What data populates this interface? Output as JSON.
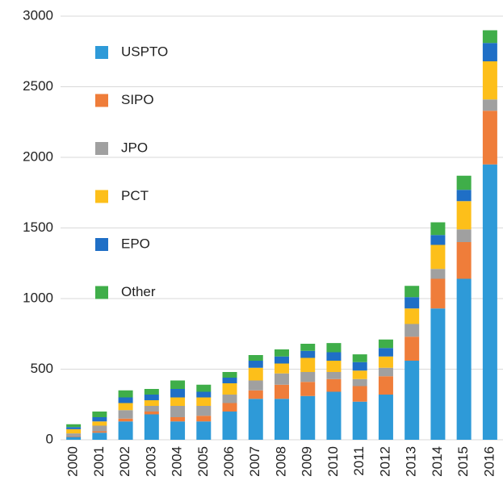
{
  "chart_data": {
    "type": "stacked_bar",
    "categories": [
      "2000",
      "2001",
      "2002",
      "2003",
      "2004",
      "2005",
      "2006",
      "2007",
      "2008",
      "2009",
      "2010",
      "2011",
      "2012",
      "2013",
      "2014",
      "2015",
      "2016"
    ],
    "series": [
      {
        "name": "USPTO",
        "color": "#2e9ad8",
        "values": [
          20,
          50,
          130,
          180,
          130,
          130,
          200,
          290,
          290,
          310,
          340,
          270,
          320,
          560,
          930,
          1140,
          1950
        ]
      },
      {
        "name": "SIPO",
        "color": "#ef7d3a",
        "values": [
          5,
          10,
          20,
          20,
          30,
          40,
          60,
          60,
          100,
          100,
          90,
          110,
          130,
          170,
          210,
          260,
          380
        ]
      },
      {
        "name": "JPO",
        "color": "#a0a0a0",
        "values": [
          20,
          40,
          60,
          40,
          80,
          70,
          60,
          70,
          80,
          70,
          50,
          50,
          60,
          90,
          70,
          90,
          80
        ]
      },
      {
        "name": "PCT",
        "color": "#fdbf1a",
        "values": [
          30,
          30,
          50,
          40,
          60,
          60,
          80,
          90,
          70,
          100,
          80,
          60,
          80,
          110,
          170,
          200,
          270
        ]
      },
      {
        "name": "EPO",
        "color": "#1f6fc6",
        "values": [
          15,
          30,
          40,
          40,
          60,
          40,
          40,
          50,
          50,
          50,
          60,
          60,
          60,
          80,
          70,
          80,
          130
        ]
      },
      {
        "name": "Other",
        "color": "#3fae49",
        "values": [
          20,
          40,
          50,
          40,
          60,
          50,
          40,
          40,
          50,
          50,
          65,
          55,
          60,
          80,
          90,
          100,
          90
        ]
      }
    ],
    "ylim": [
      0,
      3000
    ],
    "yticks": [
      0,
      500,
      1000,
      1500,
      2000,
      2500,
      3000
    ],
    "grid": true,
    "legend": "upper left"
  }
}
